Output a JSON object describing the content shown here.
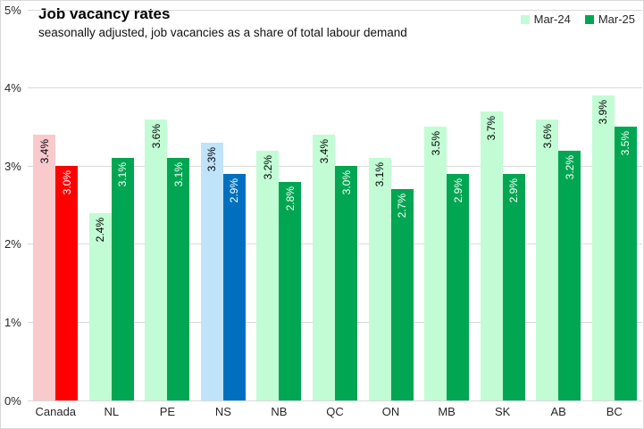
{
  "chart_data": {
    "type": "bar",
    "title": "Job vacancy rates",
    "subtitle": "seasonally adjusted, job vacancies as a share of total labour demand",
    "categories": [
      "Canada",
      "NL",
      "PE",
      "NS",
      "NB",
      "QC",
      "ON",
      "MB",
      "SK",
      "AB",
      "BC"
    ],
    "series": [
      {
        "name": "Mar-24",
        "values": [
          3.4,
          2.4,
          3.6,
          3.3,
          3.2,
          3.4,
          3.1,
          3.5,
          3.7,
          3.6,
          3.9
        ]
      },
      {
        "name": "Mar-25",
        "values": [
          3.0,
          3.1,
          3.1,
          2.9,
          2.8,
          3.0,
          2.7,
          2.9,
          2.9,
          3.2,
          3.5
        ]
      }
    ],
    "data_labels": [
      "3.4%",
      "3.0%",
      "2.4%",
      "3.1%",
      "3.6%",
      "3.1%",
      "3.3%",
      "2.9%",
      "3.2%",
      "2.8%",
      "3.4%",
      "3.0%",
      "3.1%",
      "2.7%",
      "3.5%",
      "2.9%",
      "3.7%",
      "2.9%",
      "3.6%",
      "3.2%",
      "3.9%",
      "3.5%"
    ],
    "ylim": [
      0,
      5
    ],
    "yticks": [
      "0%",
      "1%",
      "2%",
      "3%",
      "4%",
      "5%"
    ],
    "grid": true,
    "legend_position": "top-right",
    "category_themes": [
      "red",
      "green",
      "green",
      "blue",
      "green",
      "green",
      "green",
      "green",
      "green",
      "green",
      "green"
    ],
    "themes": {
      "red": {
        "light": "#F8CACC",
        "dark": "#FF0000"
      },
      "green": {
        "light": "#C2FCD5",
        "dark": "#00A651"
      },
      "blue": {
        "light": "#BFE3F8",
        "dark": "#0070BE"
      }
    },
    "label_text_on_light": "#000000",
    "label_text_on_dark": "#FFFFFF",
    "gridline_color": "#D9D9D9",
    "border_color": "#D9D9D9"
  }
}
